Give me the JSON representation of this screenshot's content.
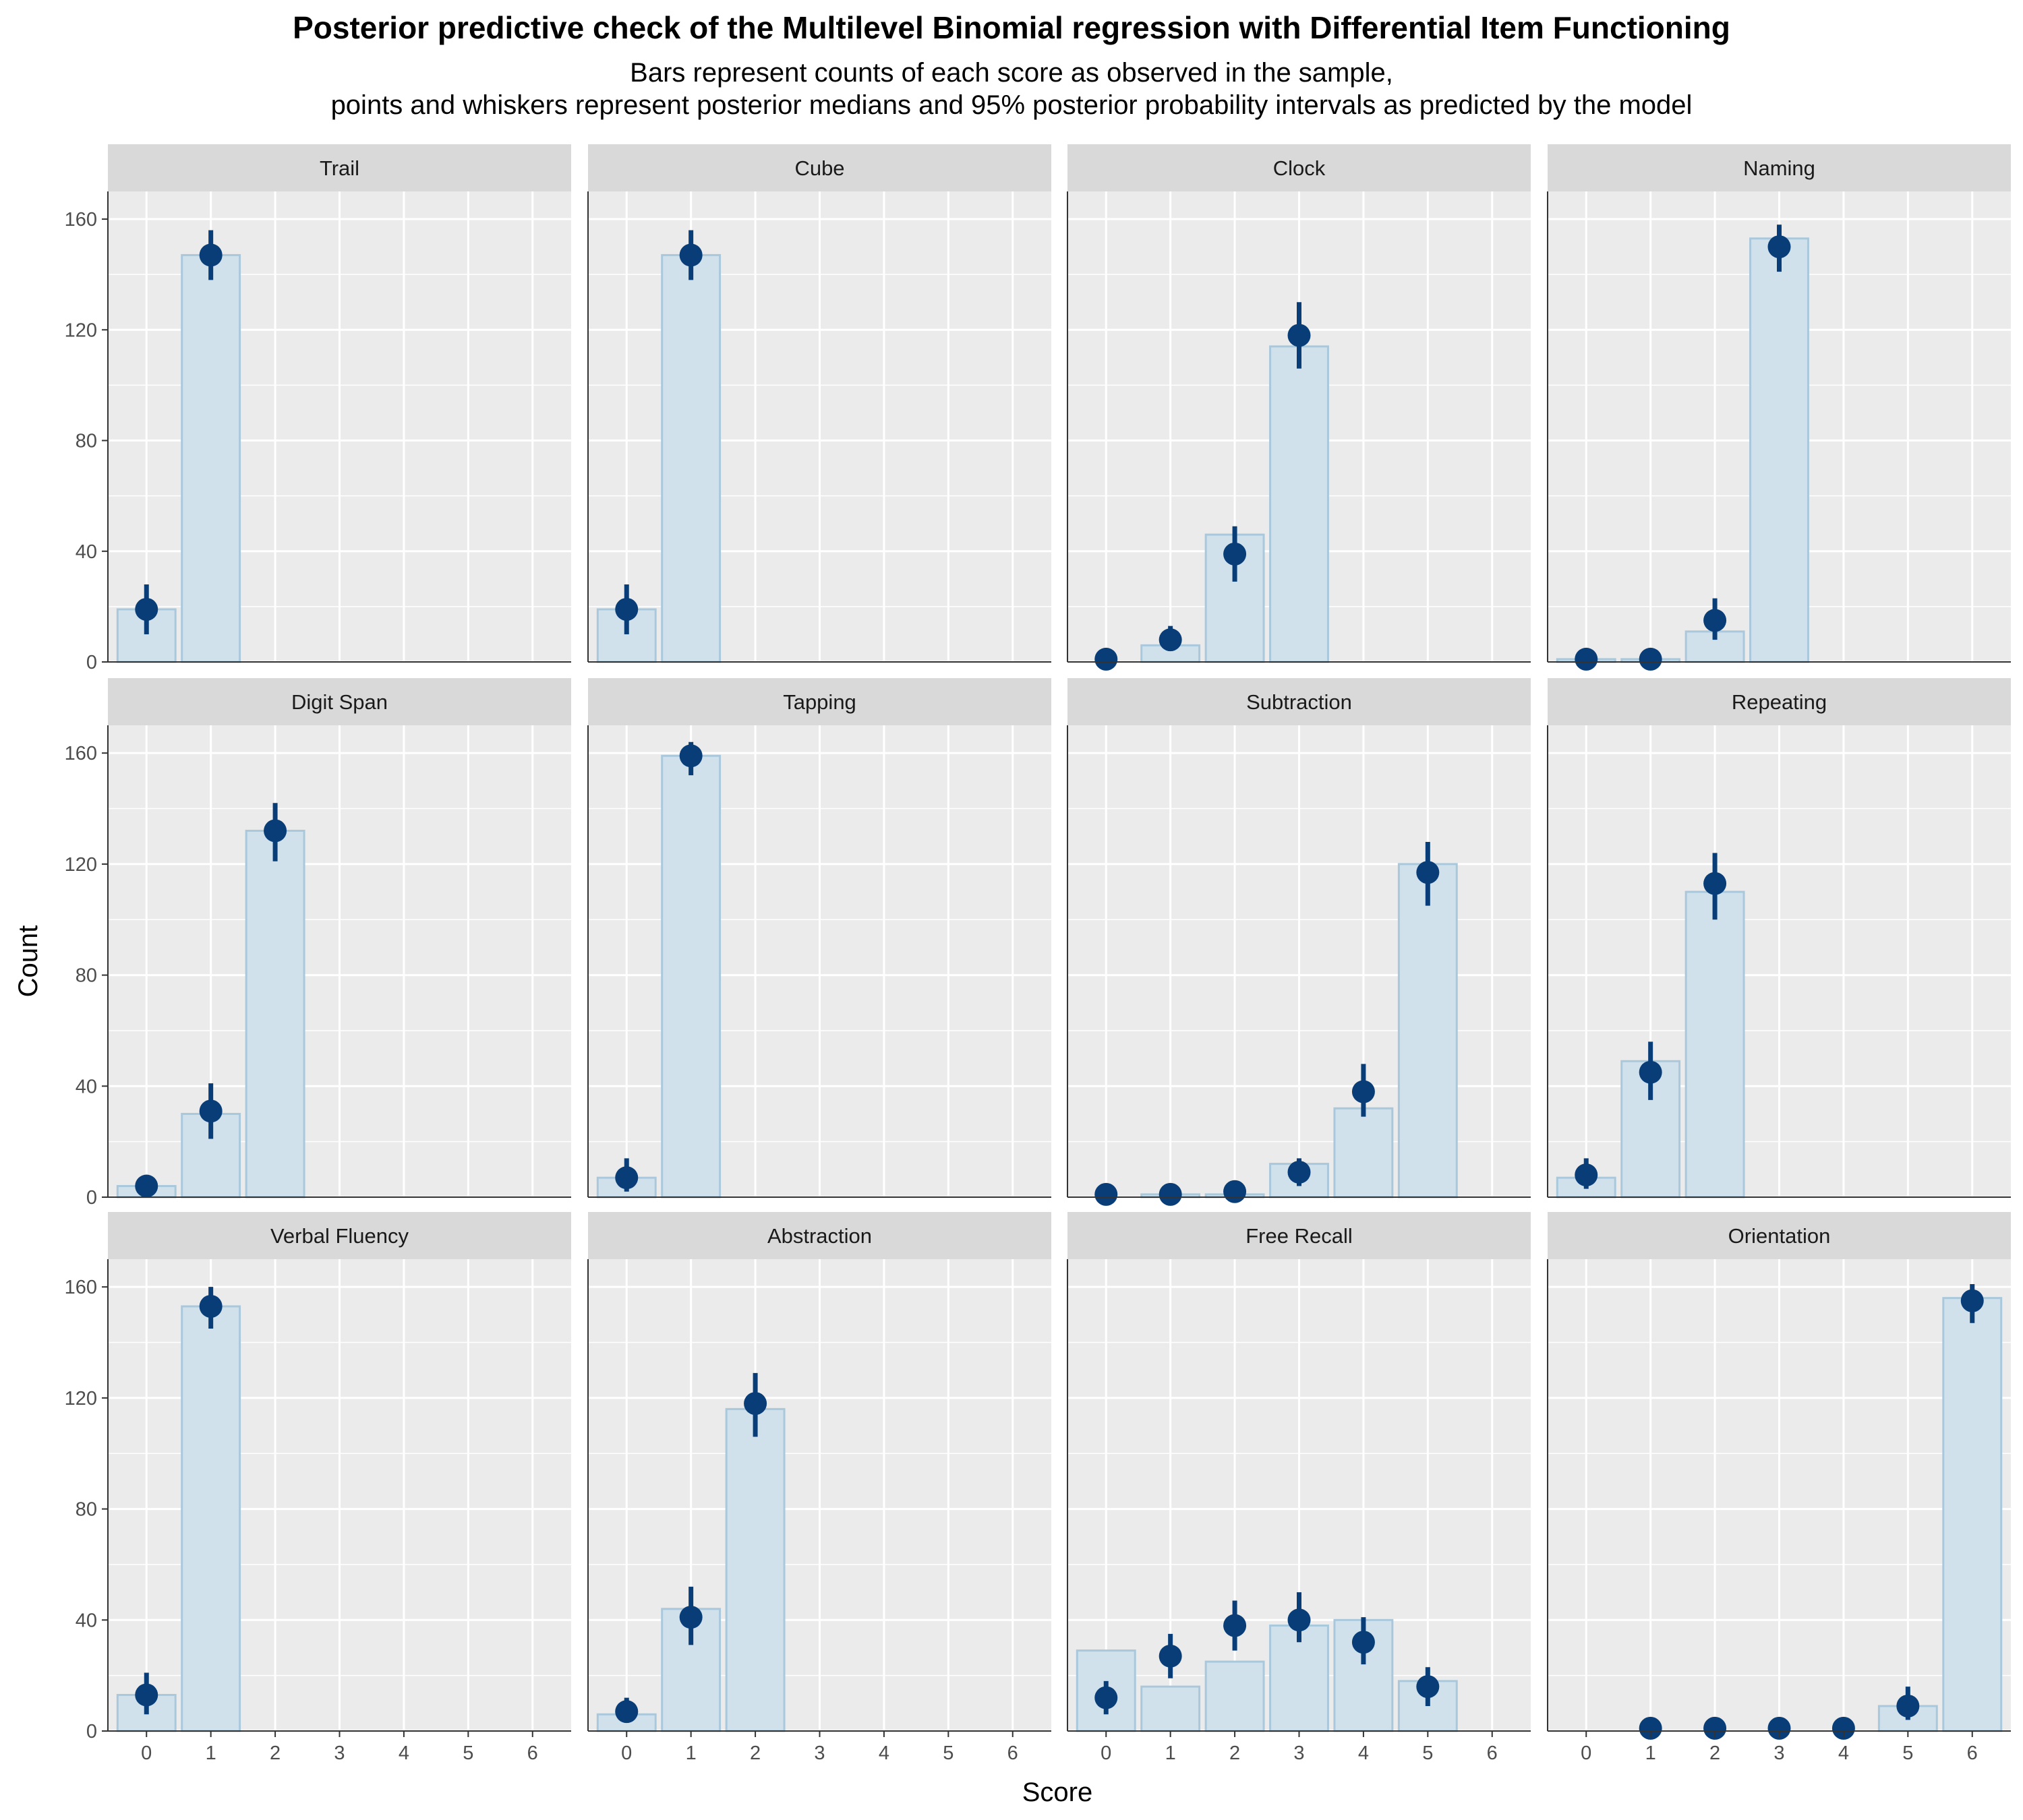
{
  "chart_data": {
    "type": "bar",
    "title": "Posterior predictive check of the Multilevel Binomial regression with Differential Item Functioning",
    "subtitle": [
      "Bars represent counts of each score as observed in the sample,",
      "points and whiskers represent posterior medians and 95% posterior probability intervals as predicted by the model"
    ],
    "xlabel": "Score",
    "ylabel": "Count",
    "xlim": [
      -0.6,
      6.6
    ],
    "ylim": [
      0,
      170
    ],
    "x_ticks": [
      0,
      1,
      2,
      3,
      4,
      5,
      6
    ],
    "y_ticks": [
      0,
      40,
      80,
      120,
      160
    ],
    "grid": true,
    "colors": {
      "bar_fill": "#d0e1ec",
      "bar_stroke": "#a9c8dc",
      "point": "#083d77",
      "panel_bg": "#ebebeb",
      "strip_bg": "#d9d9d9",
      "grid": "#ffffff"
    },
    "panels": [
      {
        "name": "Trail",
        "observed": [
          19,
          147
        ],
        "predicted": [
          [
            19,
            10,
            28
          ],
          [
            147,
            138,
            156
          ]
        ]
      },
      {
        "name": "Cube",
        "observed": [
          19,
          147
        ],
        "predicted": [
          [
            19,
            10,
            28
          ],
          [
            147,
            138,
            156
          ]
        ]
      },
      {
        "name": "Clock",
        "observed": [
          0,
          6,
          46,
          114
        ],
        "predicted": [
          [
            1,
            0,
            2
          ],
          [
            8,
            4,
            13
          ],
          [
            39,
            29,
            49
          ],
          [
            118,
            106,
            130
          ]
        ]
      },
      {
        "name": "Naming",
        "observed": [
          1,
          1,
          11,
          153
        ],
        "predicted": [
          [
            1,
            0,
            2
          ],
          [
            1,
            0,
            2
          ],
          [
            15,
            8,
            23
          ],
          [
            150,
            141,
            158
          ]
        ]
      },
      {
        "name": "Digit Span",
        "observed": [
          4,
          30,
          132
        ],
        "predicted": [
          [
            4,
            1,
            7
          ],
          [
            31,
            21,
            41
          ],
          [
            132,
            121,
            142
          ]
        ]
      },
      {
        "name": "Tapping",
        "observed": [
          7,
          159
        ],
        "predicted": [
          [
            7,
            2,
            14
          ],
          [
            159,
            152,
            164
          ]
        ]
      },
      {
        "name": "Subtraction",
        "observed": [
          0,
          1,
          1,
          12,
          32,
          120
        ],
        "predicted": [
          [
            1,
            0,
            2
          ],
          [
            1,
            0,
            2
          ],
          [
            2,
            0,
            4
          ],
          [
            9,
            4,
            14
          ],
          [
            38,
            29,
            48
          ],
          [
            117,
            105,
            128
          ]
        ]
      },
      {
        "name": "Repeating",
        "observed": [
          7,
          49,
          110
        ],
        "predicted": [
          [
            8,
            3,
            14
          ],
          [
            45,
            35,
            56
          ],
          [
            113,
            100,
            124
          ]
        ]
      },
      {
        "name": "Verbal Fluency",
        "observed": [
          13,
          153
        ],
        "predicted": [
          [
            13,
            6,
            21
          ],
          [
            153,
            145,
            160
          ]
        ]
      },
      {
        "name": "Abstraction",
        "observed": [
          6,
          44,
          116
        ],
        "predicted": [
          [
            7,
            3,
            12
          ],
          [
            41,
            31,
            52
          ],
          [
            118,
            106,
            129
          ]
        ]
      },
      {
        "name": "Free Recall",
        "observed": [
          29,
          16,
          25,
          38,
          40,
          18
        ],
        "predicted": [
          [
            12,
            6,
            18
          ],
          [
            27,
            19,
            35
          ],
          [
            38,
            29,
            47
          ],
          [
            40,
            32,
            50
          ],
          [
            32,
            24,
            41
          ],
          [
            16,
            9,
            23
          ]
        ]
      },
      {
        "name": "Orientation",
        "observed": [
          0,
          0,
          0,
          0,
          0,
          9,
          156
        ],
        "predicted": [
          null,
          [
            1,
            0,
            2
          ],
          [
            1,
            0,
            2
          ],
          [
            1,
            0,
            2
          ],
          [
            1,
            0,
            2
          ],
          [
            9,
            4,
            16
          ],
          [
            155,
            147,
            161
          ]
        ]
      }
    ]
  }
}
